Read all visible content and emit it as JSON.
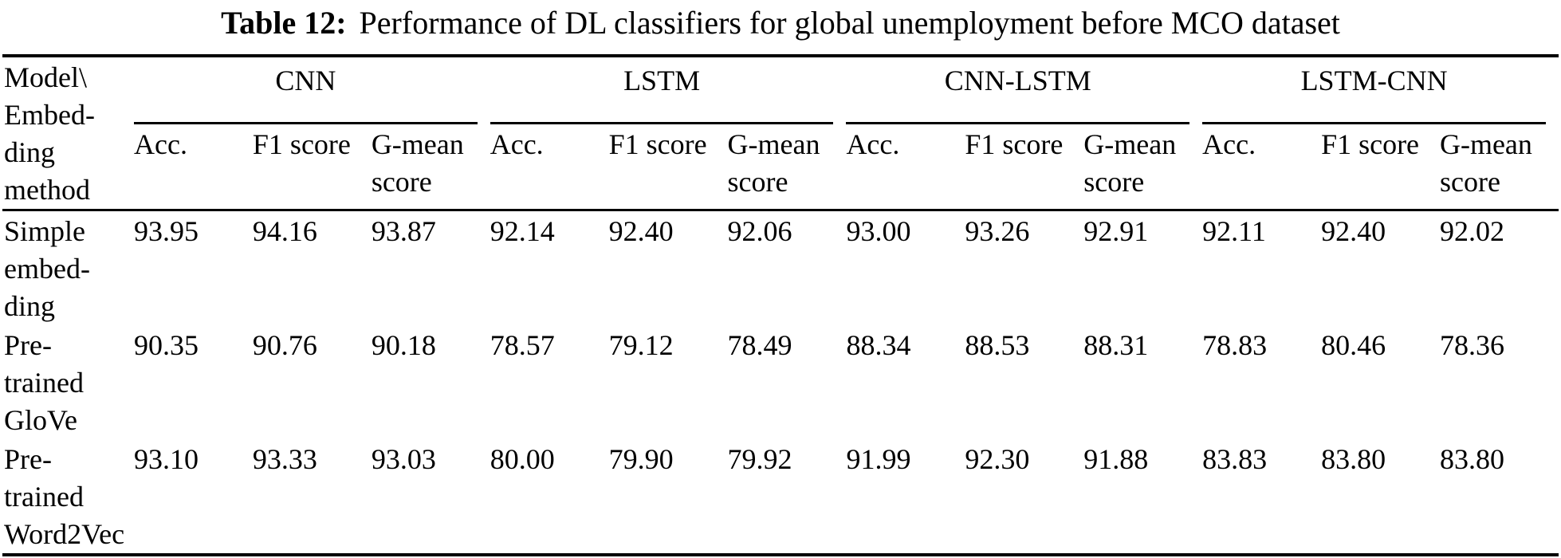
{
  "caption": {
    "label": "Table 12:",
    "text": "Performance of DL classifiers for global unemployment before MCO dataset"
  },
  "table": {
    "corner_header": "Model\\\nEmbed-\nding\nmethod",
    "groups": [
      "CNN",
      "LSTM",
      "CNN-LSTM",
      "LSTM-CNN"
    ],
    "sub_headers": [
      "Acc.",
      "F1 score",
      "G-mean\nscore"
    ],
    "rows": [
      {
        "model": "Simple\nembed-\nding",
        "values": [
          "93.95",
          "94.16",
          "93.87",
          "92.14",
          "92.40",
          "92.06",
          "93.00",
          "93.26",
          "92.91",
          "92.11",
          "92.40",
          "92.02"
        ]
      },
      {
        "model": "Pre-\ntrained\nGloVe",
        "values": [
          "90.35",
          "90.76",
          "90.18",
          "78.57",
          "79.12",
          "78.49",
          "88.34",
          "88.53",
          "88.31",
          "78.83",
          "80.46",
          "78.36"
        ]
      },
      {
        "model": "Pre-\ntrained\nWord2Vec",
        "values": [
          "93.10",
          "93.33",
          "93.03",
          "80.00",
          "79.90",
          "79.92",
          "91.99",
          "92.30",
          "91.88",
          "83.83",
          "83.80",
          "83.80"
        ]
      }
    ]
  }
}
